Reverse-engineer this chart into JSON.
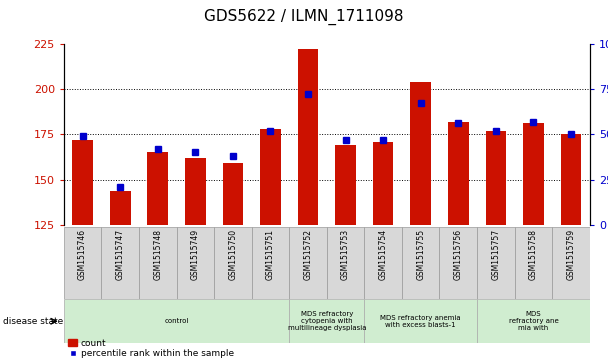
{
  "title": "GDS5622 / ILMN_1711098",
  "samples": [
    "GSM1515746",
    "GSM1515747",
    "GSM1515748",
    "GSM1515749",
    "GSM1515750",
    "GSM1515751",
    "GSM1515752",
    "GSM1515753",
    "GSM1515754",
    "GSM1515755",
    "GSM1515756",
    "GSM1515757",
    "GSM1515758",
    "GSM1515759"
  ],
  "counts": [
    172,
    144,
    165,
    162,
    159,
    178,
    222,
    169,
    171,
    204,
    182,
    177,
    181,
    175
  ],
  "percentiles": [
    49,
    21,
    42,
    40,
    38,
    52,
    72,
    47,
    47,
    67,
    56,
    52,
    57,
    50
  ],
  "ylim_left": [
    125,
    225
  ],
  "ylim_right": [
    0,
    100
  ],
  "yticks_left": [
    125,
    150,
    175,
    200,
    225
  ],
  "yticks_right": [
    0,
    25,
    50,
    75,
    100
  ],
  "bar_color": "#cc1100",
  "percentile_color": "#0000cc",
  "title_fontsize": 11,
  "sample_box_color": "#d8d8d8",
  "disease_groups": [
    {
      "label": "control",
      "start": 0,
      "end": 6,
      "color": "#d0edd0"
    },
    {
      "label": "MDS refractory\ncytopenia with\nmultilineage dysplasia",
      "start": 6,
      "end": 8,
      "color": "#d0edd0"
    },
    {
      "label": "MDS refractory anemia\nwith excess blasts-1",
      "start": 8,
      "end": 11,
      "color": "#d0edd0"
    },
    {
      "label": "MDS\nrefractory ane\nmia with",
      "start": 11,
      "end": 14,
      "color": "#d0edd0"
    }
  ],
  "legend_items": [
    {
      "label": "count",
      "color": "#cc1100",
      "marker": "s"
    },
    {
      "label": "percentile rank within the sample",
      "color": "#0000cc",
      "marker": "s"
    }
  ]
}
